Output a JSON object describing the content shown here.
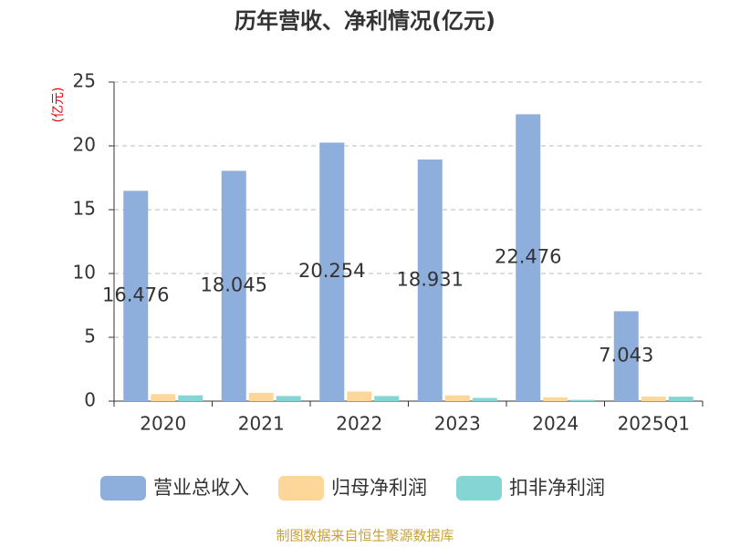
{
  "chart_data": {
    "type": "bar",
    "title": "历年营收、净利情况(亿元)",
    "y_label": "(亿元)",
    "categories": [
      "2020",
      "2021",
      "2022",
      "2023",
      "2024",
      "2025Q1"
    ],
    "series": [
      {
        "name": "营业总收入",
        "color": "#8eaedb",
        "values": [
          16.476,
          18.045,
          20.254,
          18.931,
          22.476,
          7.043
        ],
        "show_labels": true
      },
      {
        "name": "归母净利润",
        "color": "#fdd79a",
        "values": [
          0.55,
          0.65,
          0.75,
          0.45,
          0.3,
          0.35
        ]
      },
      {
        "name": "扣非净利润",
        "color": "#86d5d5",
        "values": [
          0.45,
          0.4,
          0.4,
          0.25,
          0.1,
          0.35
        ]
      }
    ],
    "ylim": [
      0,
      25
    ],
    "yticks": [
      0,
      5,
      10,
      15,
      20,
      25
    ],
    "grid": true,
    "source": "制图数据来自恒生聚源数据库"
  }
}
